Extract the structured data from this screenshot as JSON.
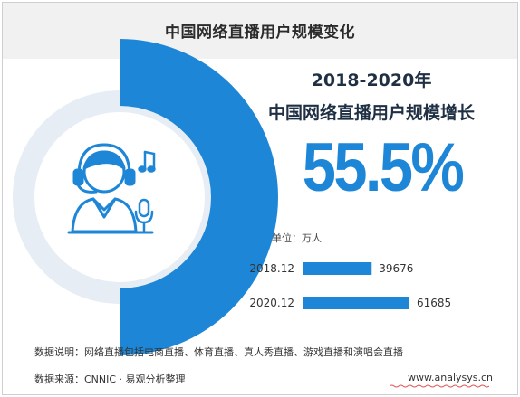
{
  "header": {
    "title": "中国网络直播用户规模变化"
  },
  "headline": {
    "period": "2018-2020年",
    "subtitle": "中国网络直播用户规模增长",
    "growth": "55.5%"
  },
  "unit_label": "单位：万人",
  "colors": {
    "accent": "#1d86d6",
    "ring_light": "#e4ecf3",
    "title_dark": "#1f2f44",
    "icon": "#1d86d6"
  },
  "icons": [
    "user-headphone-icon",
    "music-note-icon",
    "microphone-icon"
  ],
  "chart_data": {
    "type": "bar",
    "orientation": "horizontal",
    "categories": [
      "2018.12",
      "2020.12"
    ],
    "values": [
      39676,
      61685
    ],
    "xlim": [
      0,
      61685
    ]
  },
  "footer": {
    "note": "数据说明：网络直播包括电商直播、体育直播、真人秀直播、游戏直播和演唱会直播",
    "source": "数据来源：CNNIC · 易观分析整理",
    "website": "www.analysys.cn"
  }
}
